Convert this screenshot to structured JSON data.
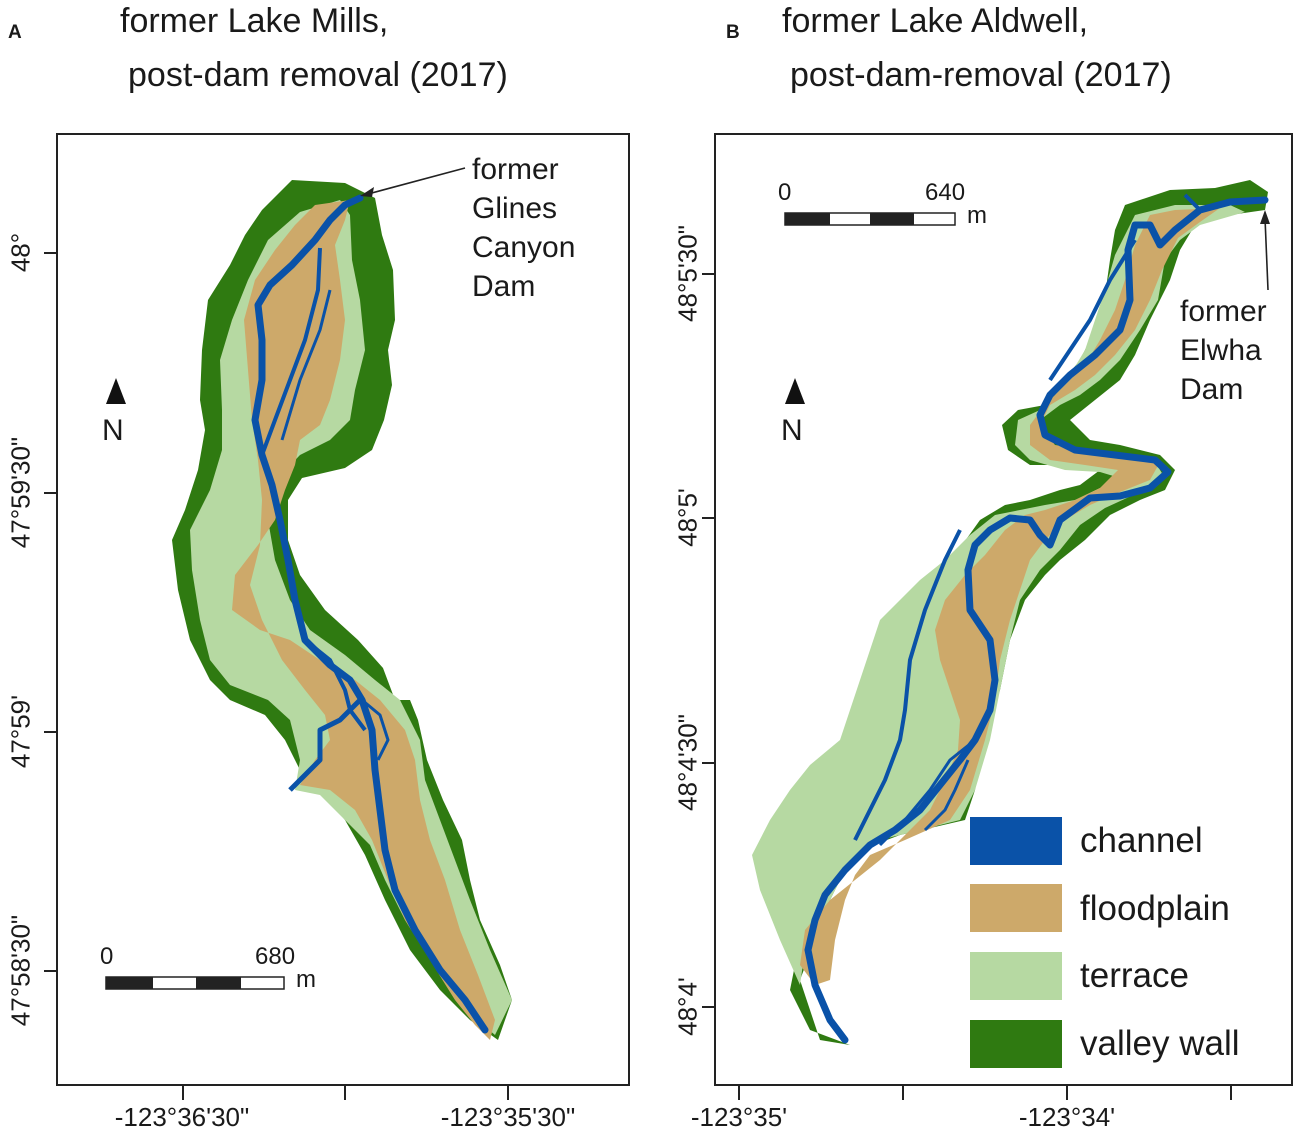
{
  "panels": [
    {
      "letter": "A",
      "title_line1": "former Lake Mills,",
      "title_line2": "post-dam removal (2017)",
      "lat_labels": [
        "48°",
        "47°59'30\"",
        "47°59'",
        "47°58'30\""
      ],
      "lon_labels": [
        "-123°36'30\"",
        "-123°35'30\""
      ],
      "annotation": [
        "former",
        "Glines",
        "Canyon",
        "Dam"
      ],
      "north_label": "N",
      "scale": {
        "start": "0",
        "end": "680",
        "unit": "m"
      }
    },
    {
      "letter": "B",
      "title_line1": "former Lake Aldwell,",
      "title_line2": "post-dam-removal (2017)",
      "lat_labels": [
        "48°5'30\"",
        "48°5'",
        "48°4'30\"",
        "48°4'"
      ],
      "lon_labels": [
        "-123°35'",
        "-123°34'"
      ],
      "annotation": [
        "former",
        "Elwha",
        "Dam"
      ],
      "north_label": "N",
      "scale": {
        "start": "0",
        "end": "640",
        "unit": "m"
      }
    }
  ],
  "legend": [
    {
      "label": "channel",
      "color": "#0a52a8"
    },
    {
      "label": "floodplain",
      "color": "#cda96a"
    },
    {
      "label": "terrace",
      "color": "#b6d9a2"
    },
    {
      "label": "valley wall",
      "color": "#2f7a11"
    }
  ],
  "colors": {
    "channel": "#0a52a8",
    "floodplain": "#cda96a",
    "terrace": "#b6d9a2",
    "valley_wall": "#2f7a11"
  }
}
